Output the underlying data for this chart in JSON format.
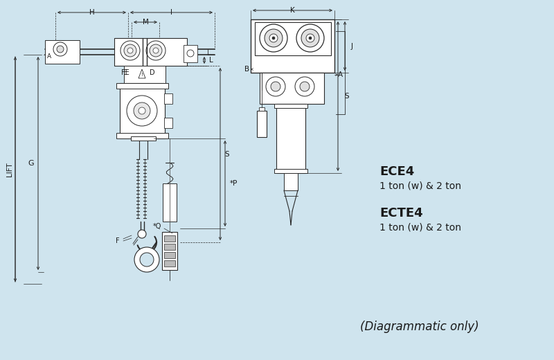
{
  "background_color": "#cfe4ee",
  "line_color": "#2a2a2a",
  "text_color": "#1a1a1a",
  "title1": "ECE4",
  "subtitle1": "1 ton (w) & 2 ton",
  "title2": "ECTE4",
  "subtitle2": "1 ton (w) & 2 ton",
  "footer": "(Diagrammatic only)",
  "dim_H_label": "H",
  "dim_I_label": "I",
  "dim_M_label": "M",
  "dim_L_label": "L",
  "dim_G_label": "G",
  "dim_P_label": "*P",
  "dim_Q_label": "*Q",
  "dim_S_label": "S",
  "dim_F_label": "F",
  "dim_K_label": "K",
  "dim_J_label": "J",
  "dim_A_label": "A",
  "dim_B_label": "B",
  "dim_LIFT_label": "LIFT"
}
